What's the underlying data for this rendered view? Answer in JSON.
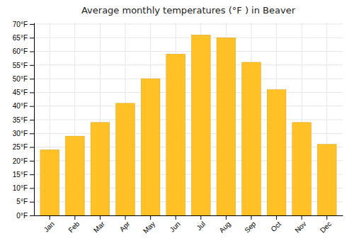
{
  "chart_data": {
    "type": "bar",
    "title": "Average monthly temperatures (°F ) in Beaver",
    "categories": [
      "Jan",
      "Feb",
      "Mar",
      "Apr",
      "May",
      "Jun",
      "Jul",
      "Aug",
      "Sep",
      "Oct",
      "Nov",
      "Dec"
    ],
    "values": [
      24,
      29,
      34,
      41,
      50,
      59,
      66,
      65,
      56,
      46,
      34,
      26
    ],
    "color": "#FFC125",
    "ylim": [
      0,
      70.5
    ],
    "yticks": [
      {
        "value": 0,
        "label": "0°F"
      },
      {
        "value": 5,
        "label": "5°F"
      },
      {
        "value": 10,
        "label": "10°F"
      },
      {
        "value": 15,
        "label": "15°F"
      },
      {
        "value": 20,
        "label": "20°F"
      },
      {
        "value": 25,
        "label": "25°F"
      },
      {
        "value": 30,
        "label": "30°F"
      },
      {
        "value": 35,
        "label": "35°F"
      },
      {
        "value": 40,
        "label": "40°F"
      },
      {
        "value": 45,
        "label": "45°F"
      },
      {
        "value": 50,
        "label": "50°F"
      },
      {
        "value": 55,
        "label": "55°F"
      },
      {
        "value": 60,
        "label": "60°F"
      },
      {
        "value": 65,
        "label": "65°F"
      },
      {
        "value": 70,
        "label": "70°F"
      }
    ],
    "grid": true
  }
}
